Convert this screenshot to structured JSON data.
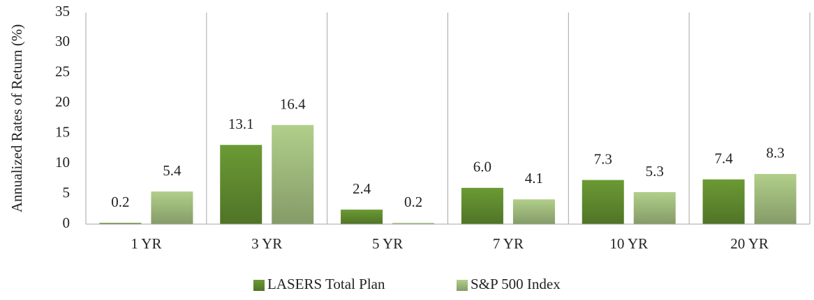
{
  "chart_data": {
    "type": "bar",
    "y_label": "Annualized Rates of Return (%)",
    "categories": [
      "1 YR",
      "3 YR",
      "5 YR",
      "7 YR",
      "10 YR",
      "20 YR"
    ],
    "series": [
      {
        "name": "LASERS Total Plan",
        "color": "#6b9a34",
        "values": [
          0.2,
          13.1,
          2.4,
          6.0,
          7.3,
          7.4
        ],
        "value_labels": [
          "0.2",
          "13.1",
          "2.4",
          "6.0",
          "7.3",
          "7.4"
        ]
      },
      {
        "name": "S&P 500 Index",
        "color": "#b1cf8a",
        "values": [
          5.4,
          16.4,
          0.2,
          4.1,
          5.3,
          8.3
        ],
        "value_labels": [
          "5.4",
          "16.4",
          "0.2",
          "4.1",
          "5.3",
          "8.3"
        ]
      }
    ],
    "ylim": [
      0,
      35
    ],
    "yticks": [
      0,
      5,
      10,
      15,
      20,
      25,
      30,
      35
    ],
    "legend": "bottom"
  }
}
